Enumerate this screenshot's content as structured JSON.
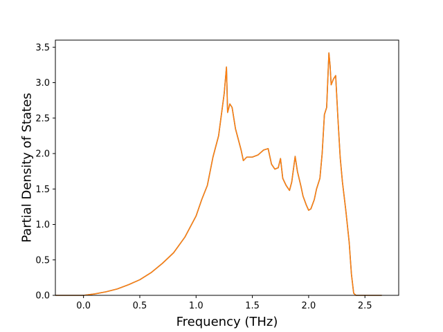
{
  "chart_data": {
    "type": "line",
    "title": "",
    "xlabel": "Frequency (THz)",
    "ylabel": "Partial Density of States",
    "xlim": [
      -0.25,
      2.8
    ],
    "ylim": [
      0.0,
      3.6
    ],
    "x_ticks": [
      0.0,
      0.5,
      1.0,
      1.5,
      2.0,
      2.5
    ],
    "y_ticks": [
      0.0,
      0.5,
      1.0,
      1.5,
      2.0,
      2.5,
      3.0,
      3.5
    ],
    "x_tick_labels": [
      "0.0",
      "0.5",
      "1.0",
      "1.5",
      "2.0",
      "2.5"
    ],
    "y_tick_labels": [
      "0.0",
      "0.5",
      "1.0",
      "1.5",
      "2.0",
      "2.5",
      "3.0",
      "3.5"
    ],
    "grid": false,
    "legend": "none",
    "series": [
      {
        "color": "#1f77b4",
        "x": [
          -0.25,
          0.0,
          0.1,
          0.2,
          0.3,
          0.4,
          0.5,
          0.6,
          0.7,
          0.8,
          0.9,
          1.0,
          1.05,
          1.1,
          1.15,
          1.2,
          1.25,
          1.27,
          1.28,
          1.3,
          1.32,
          1.35,
          1.4,
          1.42,
          1.45,
          1.5,
          1.55,
          1.6,
          1.64,
          1.67,
          1.7,
          1.73,
          1.75,
          1.77,
          1.8,
          1.83,
          1.85,
          1.88,
          1.9,
          1.93,
          1.95,
          1.98,
          2.0,
          2.02,
          2.05,
          2.07,
          2.1,
          2.12,
          2.14,
          2.16,
          2.18,
          2.19,
          2.2,
          2.22,
          2.24,
          2.26,
          2.28,
          2.3,
          2.33,
          2.36,
          2.38,
          2.4,
          2.42,
          2.5,
          2.65
        ],
        "values": [
          0.0,
          0.0,
          0.02,
          0.05,
          0.09,
          0.15,
          0.22,
          0.32,
          0.45,
          0.6,
          0.82,
          1.12,
          1.35,
          1.55,
          1.95,
          2.25,
          2.85,
          3.22,
          2.58,
          2.7,
          2.65,
          2.35,
          2.05,
          1.9,
          1.95,
          1.95,
          1.98,
          2.05,
          2.07,
          1.85,
          1.78,
          1.8,
          1.93,
          1.65,
          1.55,
          1.48,
          1.6,
          1.96,
          1.75,
          1.55,
          1.4,
          1.27,
          1.2,
          1.22,
          1.35,
          1.5,
          1.65,
          2.0,
          2.55,
          2.65,
          3.42,
          3.25,
          2.97,
          3.05,
          3.1,
          2.5,
          1.95,
          1.6,
          1.2,
          0.75,
          0.3,
          0.03,
          0.0,
          0.0,
          0.0
        ]
      },
      {
        "color": "#ff7f0e",
        "x": [
          -0.25,
          0.0,
          0.1,
          0.2,
          0.3,
          0.4,
          0.5,
          0.6,
          0.7,
          0.8,
          0.9,
          1.0,
          1.05,
          1.1,
          1.15,
          1.2,
          1.25,
          1.27,
          1.28,
          1.3,
          1.32,
          1.35,
          1.4,
          1.42,
          1.45,
          1.5,
          1.55,
          1.6,
          1.64,
          1.67,
          1.7,
          1.73,
          1.75,
          1.77,
          1.8,
          1.83,
          1.85,
          1.88,
          1.9,
          1.93,
          1.95,
          1.98,
          2.0,
          2.02,
          2.05,
          2.07,
          2.1,
          2.12,
          2.14,
          2.16,
          2.18,
          2.19,
          2.2,
          2.22,
          2.24,
          2.26,
          2.28,
          2.3,
          2.33,
          2.36,
          2.38,
          2.4,
          2.42,
          2.5,
          2.65
        ],
        "values": [
          0.0,
          0.0,
          0.02,
          0.05,
          0.09,
          0.15,
          0.22,
          0.32,
          0.45,
          0.6,
          0.82,
          1.12,
          1.35,
          1.55,
          1.95,
          2.25,
          2.85,
          3.22,
          2.58,
          2.7,
          2.65,
          2.35,
          2.05,
          1.9,
          1.95,
          1.95,
          1.98,
          2.05,
          2.07,
          1.85,
          1.78,
          1.8,
          1.93,
          1.65,
          1.55,
          1.48,
          1.6,
          1.96,
          1.75,
          1.55,
          1.4,
          1.27,
          1.2,
          1.22,
          1.35,
          1.5,
          1.65,
          2.0,
          2.55,
          2.65,
          3.42,
          3.25,
          2.97,
          3.05,
          3.1,
          2.5,
          1.95,
          1.6,
          1.2,
          0.75,
          0.3,
          0.03,
          0.0,
          0.0,
          0.0
        ]
      }
    ]
  }
}
